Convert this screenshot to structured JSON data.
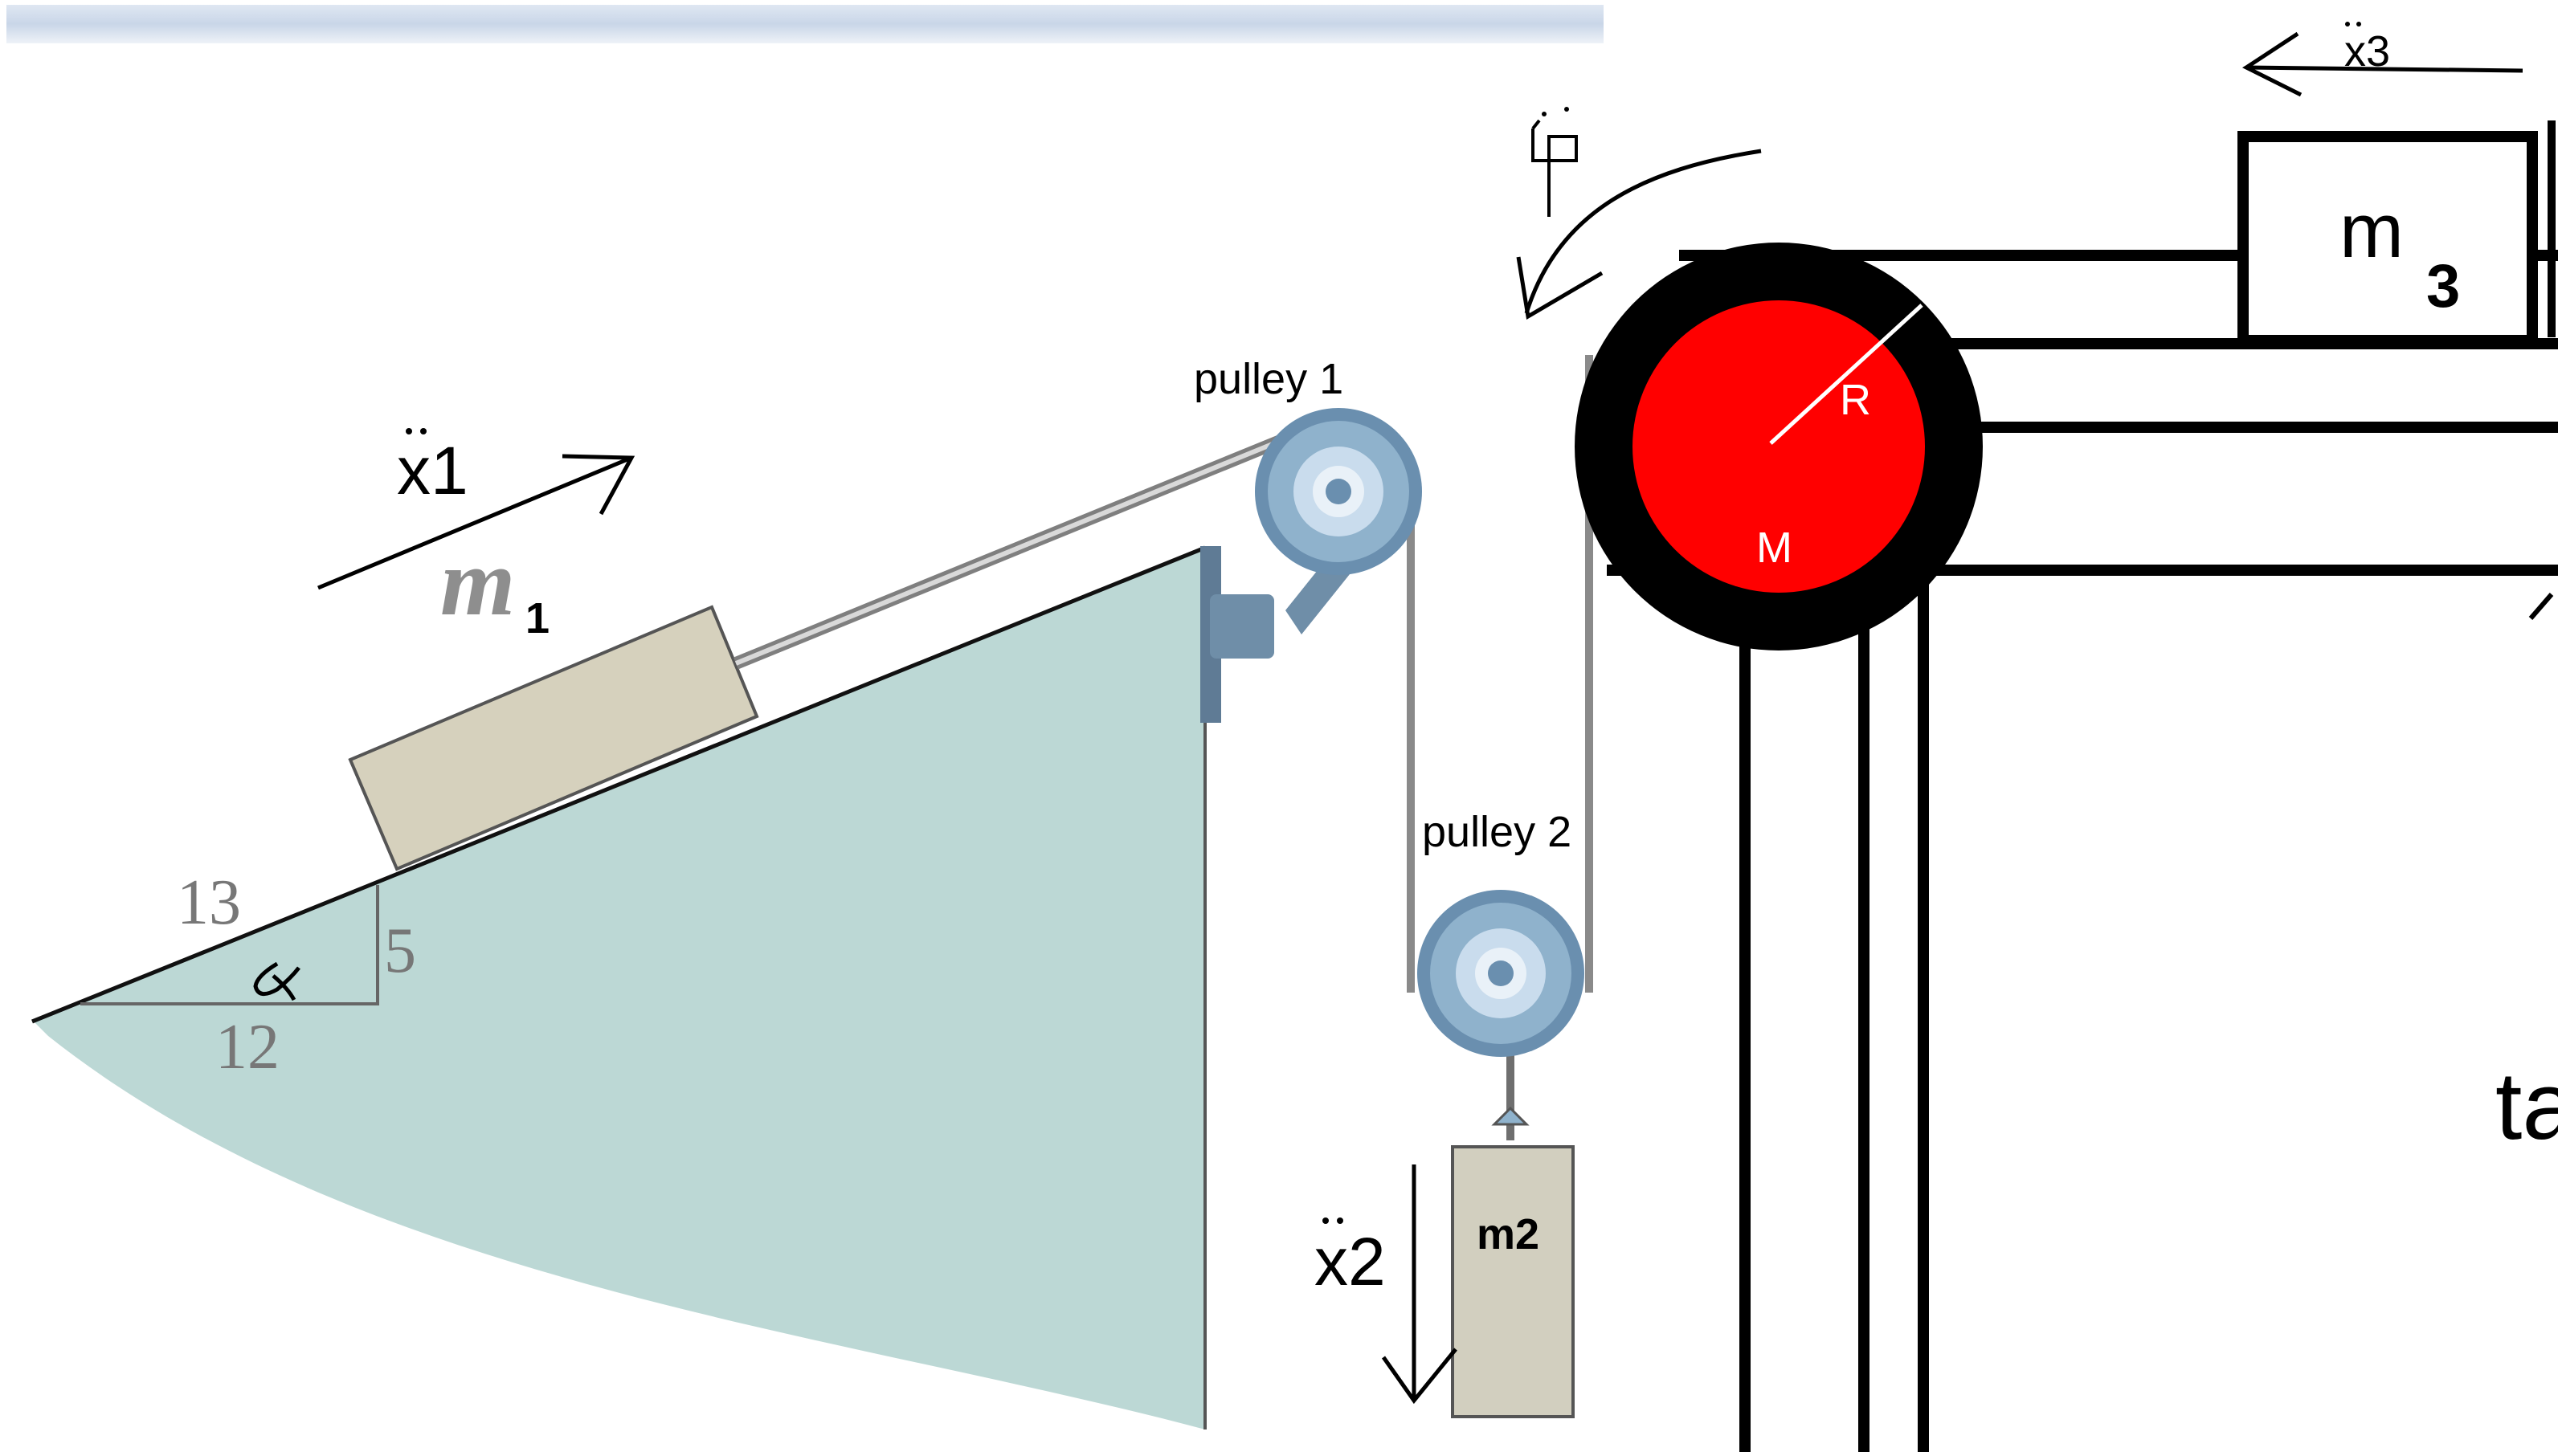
{
  "labels": {
    "accel_m1": "x1",
    "mass_m1_letter": "m",
    "mass_m1_sub": "1",
    "slope_hyp": "13",
    "slope_rise": "5",
    "slope_run": "12",
    "pulley1": "pulley 1",
    "pulley2": "pulley 2",
    "mass_m2": "m2",
    "accel_m2": "x2",
    "accel_m3": "x3",
    "mass_m3_letter": "m",
    "mass_m3_sub": "3",
    "drum_radius": "R",
    "drum_mass": "M",
    "cut_text": "ta"
  },
  "colors": {
    "wedge": "#bcd8d5",
    "block_m1": "#d6d1bd",
    "block_m2": "#d2cfbf",
    "pulley_outer": "#8fb2cc",
    "pulley_inner": "#c9dced",
    "drum_rim": "#000000",
    "drum_disc": "#ff0000",
    "ink": "#000000"
  }
}
